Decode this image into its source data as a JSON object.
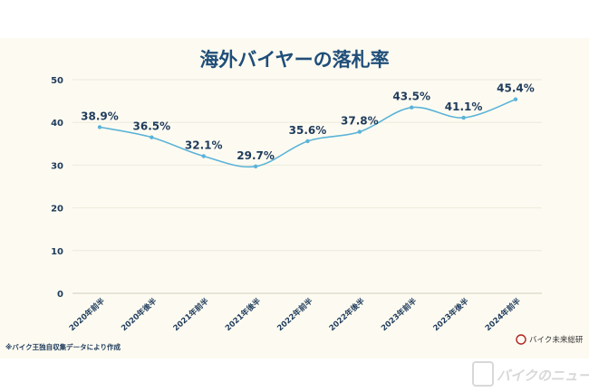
{
  "chart_data": {
    "type": "line",
    "title": "海外バイヤーの落札率",
    "categories": [
      "2020年前半",
      "2020年後半",
      "2021年前半",
      "2021年後半",
      "2022年前半",
      "2022年後半",
      "2023年前半",
      "2023年後半",
      "2024年前半"
    ],
    "values": [
      38.9,
      36.5,
      32.1,
      29.7,
      35.6,
      37.8,
      43.5,
      41.1,
      45.4
    ],
    "data_labels": [
      "38.9%",
      "36.5%",
      "32.1%",
      "29.7%",
      "35.6%",
      "37.8%",
      "43.5%",
      "41.1%",
      "45.4%"
    ],
    "yticks": [
      0,
      10,
      20,
      30,
      40,
      50
    ],
    "ylim": [
      0,
      50
    ],
    "xlabel": "",
    "ylabel": "",
    "grid": true,
    "line_color": "#5bb3d9"
  },
  "footnote": "※バイク王独自収集データにより作成",
  "logo_text": "バイク未来総研",
  "watermark_text": "バイクのニュース"
}
